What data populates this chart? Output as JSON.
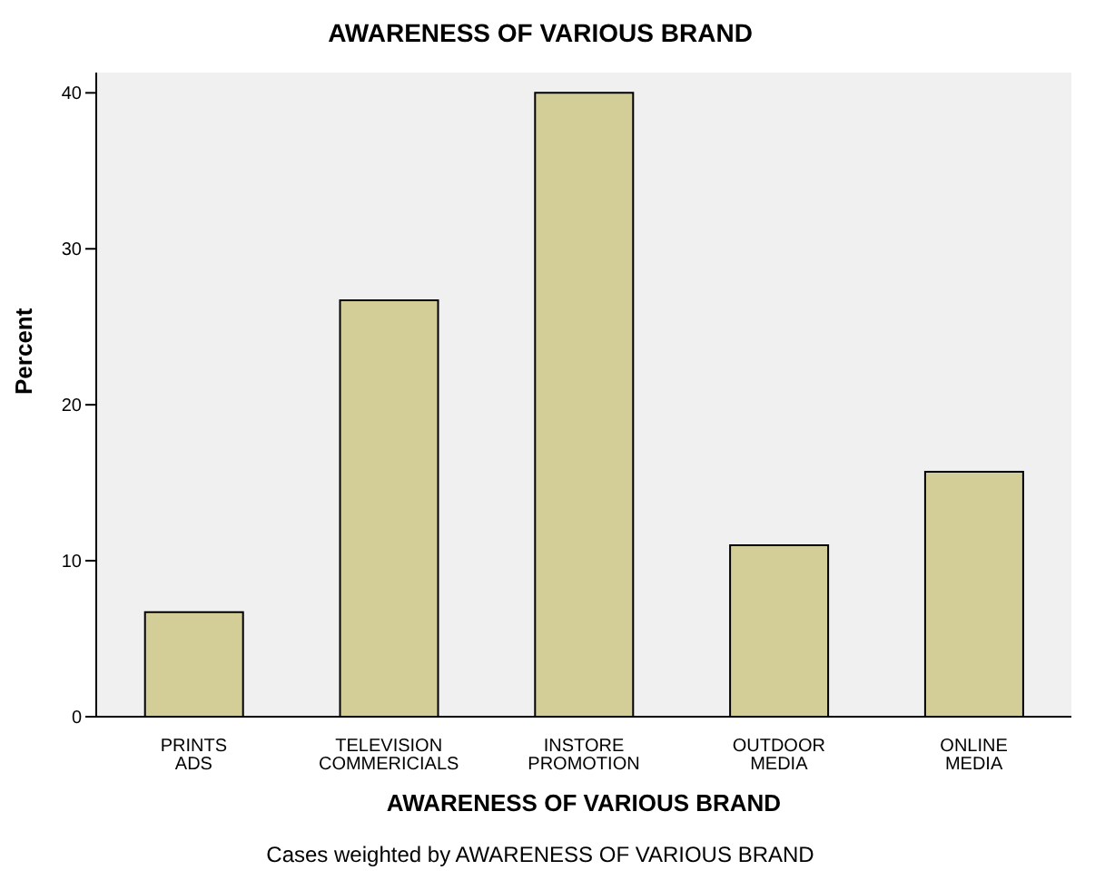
{
  "chart_data": {
    "type": "bar",
    "title": "AWARENESS OF VARIOUS BRAND",
    "xlabel": "AWARENESS OF VARIOUS BRAND",
    "ylabel": "Percent",
    "categories": [
      "PRINTS ADS",
      "TELEVISION COMMERICIALS",
      "INSTORE PROMOTION",
      "OUTDOOR MEDIA",
      "ONLINE MEDIA"
    ],
    "values": [
      6.7,
      26.7,
      40,
      11,
      15.7
    ],
    "color": "#d3ce97",
    "ylim": [
      0,
      41.3
    ],
    "yticks": [
      0,
      10,
      20,
      30,
      40
    ],
    "grid": false,
    "annotations": [
      "Cases weighted by AWARENESS OF VARIOUS BRAND"
    ]
  }
}
